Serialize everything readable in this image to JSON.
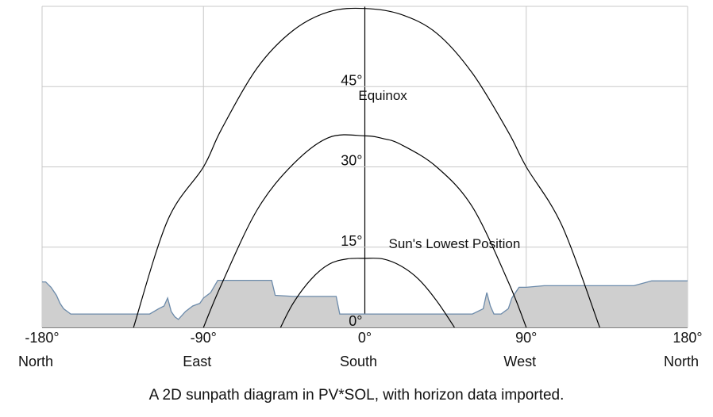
{
  "caption": "A 2D sunpath diagram in PV*SOL, with horizon data imported.",
  "chart_data": {
    "type": "line",
    "title": "",
    "xlabel": "",
    "ylabel": "",
    "xlim": [
      -180,
      180
    ],
    "ylim": [
      0,
      60
    ],
    "grid": true,
    "x_gridlines": [
      -180,
      -90,
      0,
      90,
      180
    ],
    "y_gridlines": [
      0,
      15,
      30,
      45,
      60
    ],
    "x_tick_labels": [
      {
        "x": -180,
        "deg": "-180°",
        "dir": "North"
      },
      {
        "x": -90,
        "deg": "-90°",
        "dir": "East"
      },
      {
        "x": 0,
        "deg": "0°",
        "dir": "South"
      },
      {
        "x": 90,
        "deg": "90°",
        "dir": "West"
      },
      {
        "x": 180,
        "deg": "180°",
        "dir": "North"
      }
    ],
    "y_tick_labels": [
      {
        "y": 0,
        "text": "0°"
      },
      {
        "y": 15,
        "text": "15°"
      },
      {
        "y": 30,
        "text": "30°"
      },
      {
        "y": 45,
        "text": "45°"
      }
    ],
    "series": [
      {
        "label": "",
        "color": "#000000",
        "x": [
          -129,
          -110,
          -90,
          -80,
          -60,
          -40,
          -20,
          0,
          20,
          40,
          60,
          80,
          90,
          110,
          131
        ],
        "y": [
          0,
          20,
          30,
          37,
          48.5,
          55.5,
          59,
          59.6,
          58.5,
          55,
          47.5,
          36.5,
          30,
          19,
          0
        ]
      },
      {
        "name": "Equinox",
        "color": "#000000",
        "x": [
          -90,
          -80,
          -60,
          -40,
          -20,
          0,
          10,
          20,
          40,
          60,
          80,
          90
        ],
        "y": [
          0,
          8,
          22,
          30.5,
          35.5,
          35.8,
          35.3,
          34.2,
          30,
          22.5,
          8.5,
          0
        ]
      },
      {
        "name": "Sun's Lowest Position",
        "color": "#000000",
        "x": [
          -47,
          -40,
          -30,
          -20,
          -10,
          0,
          10,
          20,
          30,
          40,
          50
        ],
        "y": [
          0,
          4.5,
          9,
          11.8,
          12.8,
          12.9,
          12.8,
          11.5,
          9,
          5,
          0
        ]
      }
    ],
    "horizon": {
      "color": "#cfcfcf",
      "edge": "#6b8aaa",
      "x": [
        -180,
        -178,
        -175,
        -172,
        -170,
        -168,
        -164,
        -160,
        -140,
        -120,
        -115,
        -112,
        -110,
        -108,
        -106,
        -104,
        -100,
        -96,
        -92,
        -90,
        -88,
        -86,
        -82,
        -80,
        -70,
        -60,
        -52,
        -50,
        -40,
        -30,
        -20,
        -16,
        -14,
        0,
        20,
        40,
        60,
        66,
        68,
        70,
        72,
        76,
        80,
        82,
        84,
        86,
        90,
        100,
        120,
        140,
        150,
        160,
        170,
        180
      ],
      "y": [
        8.5,
        8.5,
        7.5,
        6,
        4.5,
        3.5,
        2.5,
        2.5,
        2.5,
        2.5,
        3.5,
        4,
        5.5,
        3,
        2,
        1.5,
        3,
        4,
        4.5,
        5.5,
        6,
        6.5,
        8.8,
        8.8,
        8.8,
        8.8,
        8.8,
        6,
        5.8,
        5.8,
        5.8,
        5.8,
        2.5,
        2.5,
        2.5,
        2.5,
        2.5,
        3.5,
        6.5,
        4,
        2.5,
        2.5,
        3.5,
        5.5,
        6.5,
        7.5,
        7.5,
        7.8,
        7.8,
        7.8,
        7.8,
        8.7,
        8.7,
        8.7
      ]
    },
    "annotations": [
      {
        "text": "Equinox",
        "anchor": "above equinox peak"
      },
      {
        "text": "Sun's Lowest Position",
        "anchor": "above lowest curve peak"
      }
    ]
  }
}
